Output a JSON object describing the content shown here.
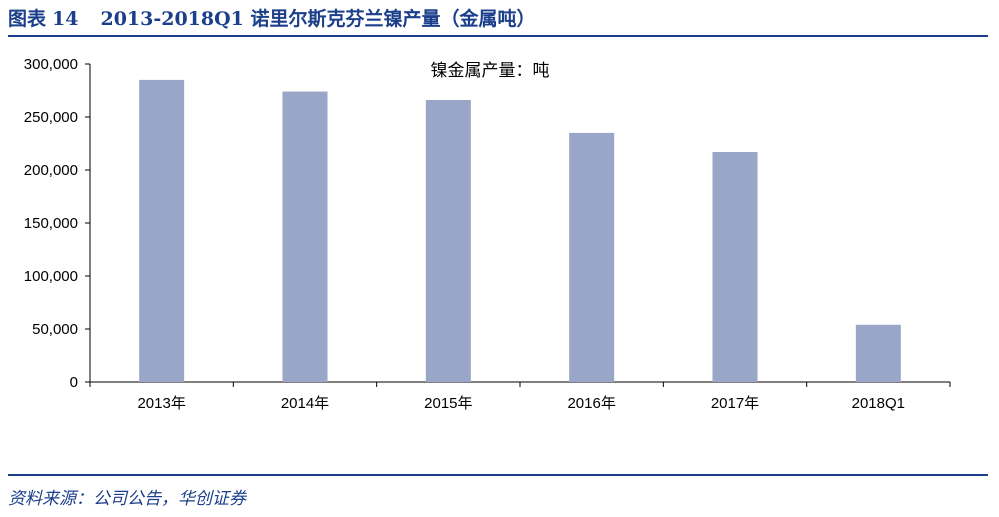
{
  "figure": {
    "label": "图表",
    "number": "14",
    "title": "2013-2018Q1 诺里尔斯克芬兰镍产量（金属吨）"
  },
  "source": "资料来源：公司公告，华创证券",
  "colors": {
    "brand": "#1b3f8b",
    "bar": "#9aa6c8",
    "axis": "#000000"
  },
  "chart_data": {
    "type": "bar",
    "title": "",
    "categories": [
      "2013年",
      "2014年",
      "2015年",
      "2016年",
      "2017年",
      "2018Q1"
    ],
    "series": [
      {
        "name": "镍金属产量：吨",
        "values": [
          285000,
          274000,
          266000,
          235000,
          217000,
          54000
        ]
      }
    ],
    "ylim": [
      0,
      300000
    ],
    "yticks": [
      0,
      50000,
      100000,
      150000,
      200000,
      250000,
      300000
    ],
    "ytick_labels": [
      "0",
      "50,000",
      "100,000",
      "150,000",
      "200,000",
      "250,000",
      "300,000"
    ],
    "xlabel": "",
    "ylabel": "",
    "grid": false,
    "legend_position": "top-center"
  }
}
